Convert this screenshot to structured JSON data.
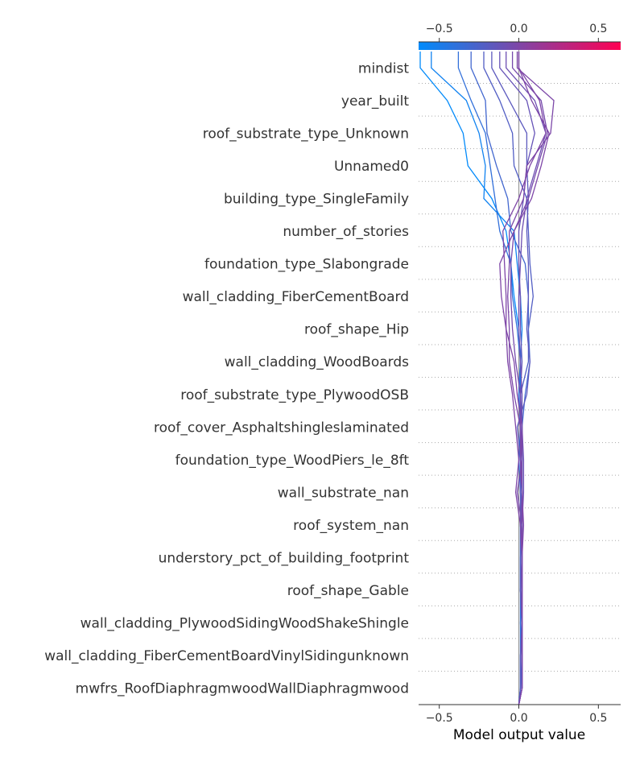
{
  "chart_data": {
    "type": "line",
    "xlabel": "Model output value",
    "xlim": [
      -0.63,
      0.64
    ],
    "xticks": [
      -0.5,
      0.0,
      0.5
    ],
    "xtick_labels": [
      "−0.5",
      "0.0",
      "0.5"
    ],
    "base_value": 0.0,
    "colorbar": {
      "low_color": "#008bfb",
      "high_color": "#ff0052",
      "range": [
        -0.63,
        0.64
      ]
    },
    "features": [
      "mindist",
      "year_built",
      "roof_substrate_type_Unknown",
      "Unnamed0",
      "building_type_SingleFamily",
      "number_of_stories",
      "foundation_type_Slabongrade",
      "wall_cladding_FiberCementBoard",
      "roof_shape_Hip",
      "wall_cladding_WoodBoards",
      "roof_substrate_type_PlywoodOSB",
      "roof_cover_Asphaltshingleslaminated",
      "foundation_type_WoodPiers_le_8ft",
      "wall_substrate_nan",
      "roof_system_nan",
      "understory_pct_of_building_footprint",
      "roof_shape_Gable",
      "wall_cladding_PlywoodSidingWoodShakeShingle",
      "wall_cladding_FiberCementBoardVinylSidingunknown",
      "mwfrs_RoofDiaphragmwoodWallDiaphragmwood"
    ],
    "series": [
      {
        "values": [
          -0.62,
          -0.45,
          -0.35,
          -0.32,
          -0.17,
          -0.08,
          -0.05,
          -0.03,
          0.0,
          0.01,
          0.01,
          0.02,
          0.02,
          0.01,
          0.02,
          0.02,
          0.02,
          0.01,
          0.02,
          0.01
        ]
      },
      {
        "values": [
          -0.55,
          -0.33,
          -0.25,
          -0.21,
          -0.22,
          -0.03,
          -0.01,
          0.01,
          0.02,
          0.01,
          0.0,
          0.01,
          0.02,
          0.02,
          0.01,
          0.01,
          0.01,
          0.02,
          0.01,
          0.01
        ]
      },
      {
        "values": [
          -0.38,
          -0.3,
          -0.21,
          -0.18,
          -0.15,
          -0.12,
          -0.05,
          -0.04,
          -0.01,
          0.01,
          0.0,
          0.01,
          0.0,
          0.01,
          0.02,
          0.01,
          0.01,
          0.01,
          0.01,
          0.01
        ]
      },
      {
        "values": [
          -0.3,
          -0.21,
          -0.2,
          -0.14,
          -0.07,
          -0.05,
          0.04,
          0.06,
          0.06,
          0.07,
          0.04,
          0.02,
          0.02,
          0.02,
          0.02,
          0.02,
          0.01,
          0.02,
          0.02,
          0.02
        ]
      },
      {
        "values": [
          -0.22,
          -0.12,
          -0.04,
          -0.03,
          0.05,
          0.06,
          0.07,
          0.09,
          0.06,
          0.06,
          0.01,
          0.01,
          0.01,
          0.02,
          0.01,
          0.01,
          0.01,
          0.02,
          0.02,
          0.02
        ]
      },
      {
        "values": [
          -0.17,
          -0.06,
          0.05,
          0.05,
          0.06,
          0.05,
          0.06,
          0.06,
          0.05,
          0.07,
          0.05,
          -0.01,
          0.01,
          0.01,
          0.01,
          0.02,
          0.01,
          0.02,
          0.01,
          0.01
        ]
      },
      {
        "values": [
          -0.12,
          0.05,
          0.1,
          0.05,
          0.03,
          0.0,
          0.0,
          0.01,
          0.01,
          0.02,
          0.01,
          0.02,
          0.01,
          0.02,
          0.01,
          0.02,
          0.02,
          0.02,
          0.02,
          0.02
        ]
      },
      {
        "values": [
          -0.08,
          0.1,
          0.17,
          0.11,
          0.05,
          0.02,
          0.01,
          0.0,
          0.0,
          0.01,
          0.02,
          0.02,
          0.03,
          0.03,
          0.02,
          0.02,
          0.02,
          0.02,
          0.02,
          0.02
        ]
      },
      {
        "values": [
          -0.04,
          0.14,
          0.18,
          0.12,
          0.06,
          -0.03,
          -0.05,
          -0.05,
          -0.04,
          -0.02,
          0.01,
          0.01,
          0.02,
          -0.01,
          0.02,
          0.02,
          0.02,
          0.02,
          0.02,
          0.02
        ]
      },
      {
        "values": [
          -0.01,
          0.22,
          0.2,
          0.05,
          0.03,
          -0.06,
          -0.06,
          -0.07,
          -0.06,
          -0.06,
          -0.03,
          0.01,
          0.01,
          0.02,
          0.03,
          0.02,
          0.02,
          0.02,
          0.02,
          0.02
        ]
      },
      {
        "values": [
          0.0,
          0.13,
          0.17,
          0.07,
          0.0,
          -0.1,
          -0.09,
          -0.08,
          -0.08,
          -0.03,
          -0.01,
          0.02,
          0.02,
          0.02,
          0.02,
          0.02,
          0.02,
          0.02,
          0.02,
          0.02
        ]
      },
      {
        "values": [
          0.0,
          0.08,
          0.19,
          0.14,
          0.08,
          -0.03,
          -0.12,
          -0.11,
          -0.08,
          -0.07,
          -0.04,
          -0.02,
          0.0,
          -0.02,
          0.01,
          0.02,
          0.02,
          0.02,
          0.02,
          0.02
        ]
      }
    ]
  }
}
